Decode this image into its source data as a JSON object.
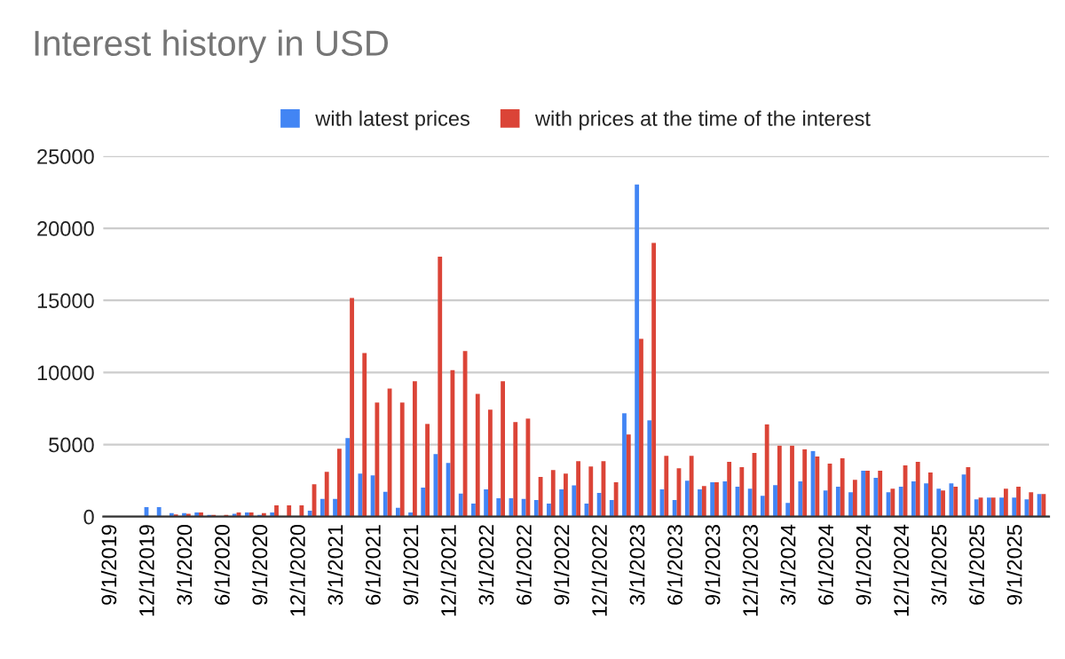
{
  "chart_data": {
    "type": "bar",
    "title": "Interest history in USD",
    "categories": [
      "9/1/2019",
      null,
      null,
      "12/1/2019",
      null,
      null,
      "3/1/2020",
      null,
      null,
      "6/1/2020",
      null,
      null,
      "9/1/2020",
      null,
      null,
      "12/1/2020",
      null,
      null,
      "3/1/2021",
      null,
      null,
      "6/1/2021",
      null,
      null,
      "9/1/2021",
      null,
      null,
      "12/1/2021",
      null,
      null,
      "3/1/2022",
      null,
      null,
      "6/1/2022",
      null,
      null,
      "9/1/2022",
      null,
      null,
      "12/1/2022",
      null,
      null,
      "3/1/2023",
      null,
      null,
      "6/1/2023",
      null,
      null,
      "9/1/2023",
      null,
      null,
      "12/1/2023",
      null,
      null,
      "3/1/2024",
      null,
      null,
      "6/1/2024",
      null,
      null,
      "9/1/2024",
      null,
      null,
      "12/1/2024",
      null,
      null,
      "3/1/2025",
      null,
      null,
      "6/1/2025",
      null,
      null,
      "9/1/2025",
      null,
      null
    ],
    "series": [
      {
        "name": "with latest prices",
        "color": "#4285f4",
        "values": [
          0,
          0,
          0,
          660,
          660,
          250,
          250,
          290,
          120,
          null,
          200,
          290,
          120,
          290,
          null,
          null,
          410,
          1230,
          1230,
          5450,
          2990,
          2870,
          1720,
          610,
          290,
          2010,
          4340,
          3730,
          1600,
          900,
          1890,
          1270,
          1270,
          1230,
          1150,
          900,
          1890,
          2170,
          900,
          1640,
          1150,
          7170,
          23030,
          6680,
          1890,
          1150,
          2500,
          1890,
          2380,
          2440,
          2070,
          1940,
          1450,
          2190,
          950,
          2440,
          4550,
          1820,
          2070,
          1690,
          3180,
          2690,
          1690,
          2070,
          2440,
          2310,
          1940,
          2310,
          2930,
          1200,
          1320,
          1320,
          1320,
          1200,
          1570
        ]
      },
      {
        "name": "with prices at the time of the interest",
        "color": "#db4437",
        "values": [
          0,
          0,
          0,
          0,
          null,
          160,
          200,
          290,
          120,
          120,
          290,
          290,
          250,
          780,
          780,
          780,
          2250,
          3110,
          4710,
          15160,
          11350,
          7910,
          8890,
          7910,
          9390,
          6430,
          18030,
          10160,
          11480,
          8520,
          7420,
          9390,
          6560,
          6800,
          2750,
          3240,
          2990,
          3850,
          3480,
          3850,
          2380,
          5700,
          12340,
          18980,
          4220,
          3360,
          4220,
          2130,
          2380,
          3800,
          3430,
          4420,
          6400,
          4920,
          4920,
          4670,
          4170,
          3680,
          4050,
          2560,
          3180,
          3180,
          1940,
          3550,
          3800,
          3060,
          1820,
          2070,
          3430,
          1320,
          1320,
          1940,
          2070,
          1690,
          1570
        ]
      }
    ],
    "ylim": [
      0,
      25000
    ],
    "yticks": [
      0,
      5000,
      10000,
      15000,
      20000,
      25000
    ],
    "grid": "y",
    "legend": "top"
  }
}
